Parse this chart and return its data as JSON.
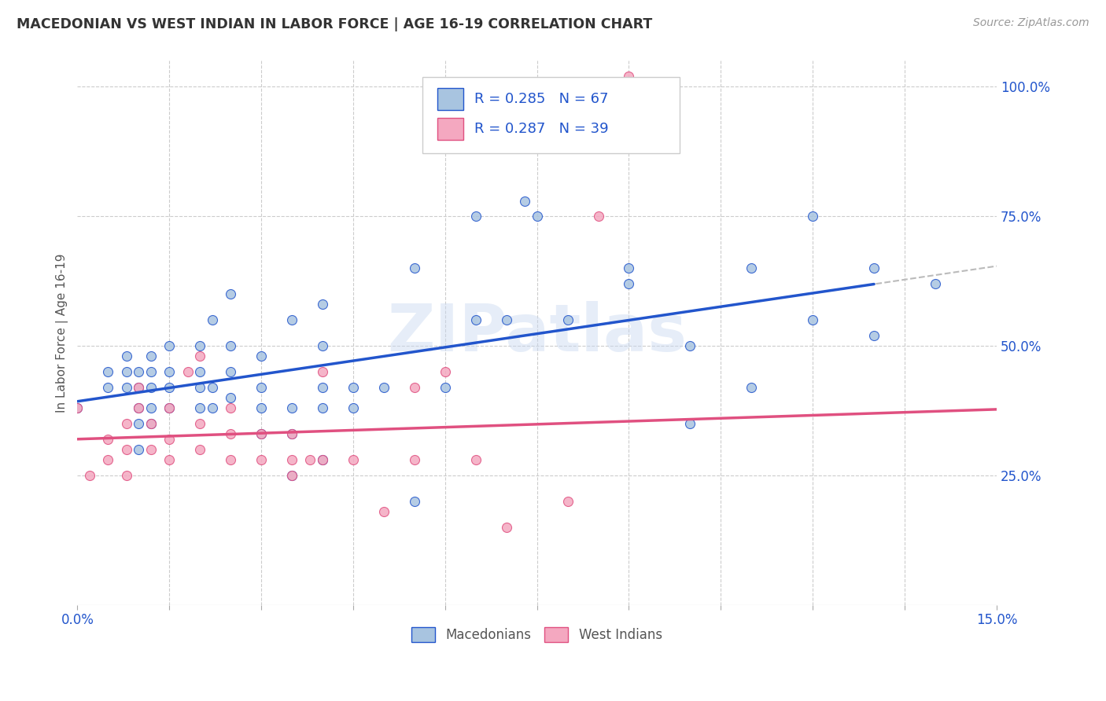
{
  "title": "MACEDONIAN VS WEST INDIAN IN LABOR FORCE | AGE 16-19 CORRELATION CHART",
  "source": "Source: ZipAtlas.com",
  "ylabel": "In Labor Force | Age 16-19",
  "xlim": [
    0.0,
    0.15
  ],
  "ylim": [
    0.0,
    1.05
  ],
  "y_tick_labels_right": [
    "25.0%",
    "50.0%",
    "75.0%",
    "100.0%"
  ],
  "y_ticks_right": [
    0.25,
    0.5,
    0.75,
    1.0
  ],
  "mac_color": "#a8c4e0",
  "wi_color": "#f4a8c0",
  "mac_line_color": "#2255cc",
  "wi_line_color": "#e05080",
  "trend_dash_color": "#bbbbbb",
  "R_mac": 0.285,
  "N_mac": 67,
  "R_wi": 0.287,
  "N_wi": 39,
  "watermark": "ZIPatlas",
  "mac_x": [
    0.0,
    0.005,
    0.005,
    0.008,
    0.008,
    0.008,
    0.01,
    0.01,
    0.01,
    0.01,
    0.01,
    0.012,
    0.012,
    0.012,
    0.012,
    0.012,
    0.015,
    0.015,
    0.015,
    0.015,
    0.02,
    0.02,
    0.02,
    0.02,
    0.022,
    0.022,
    0.022,
    0.025,
    0.025,
    0.025,
    0.025,
    0.03,
    0.03,
    0.03,
    0.03,
    0.035,
    0.035,
    0.035,
    0.035,
    0.04,
    0.04,
    0.04,
    0.04,
    0.04,
    0.045,
    0.045,
    0.05,
    0.055,
    0.055,
    0.06,
    0.065,
    0.065,
    0.07,
    0.073,
    0.075,
    0.08,
    0.09,
    0.09,
    0.1,
    0.1,
    0.11,
    0.11,
    0.12,
    0.12,
    0.13,
    0.13,
    0.14
  ],
  "mac_y": [
    0.38,
    0.42,
    0.45,
    0.42,
    0.45,
    0.48,
    0.3,
    0.35,
    0.38,
    0.42,
    0.45,
    0.35,
    0.38,
    0.42,
    0.45,
    0.48,
    0.38,
    0.42,
    0.45,
    0.5,
    0.38,
    0.42,
    0.45,
    0.5,
    0.38,
    0.42,
    0.55,
    0.4,
    0.45,
    0.5,
    0.6,
    0.33,
    0.38,
    0.42,
    0.48,
    0.25,
    0.33,
    0.38,
    0.55,
    0.28,
    0.38,
    0.42,
    0.5,
    0.58,
    0.38,
    0.42,
    0.42,
    0.2,
    0.65,
    0.42,
    0.55,
    0.75,
    0.55,
    0.78,
    0.75,
    0.55,
    0.65,
    0.62,
    0.35,
    0.5,
    0.65,
    0.42,
    0.55,
    0.75,
    0.52,
    0.65,
    0.62
  ],
  "wi_x": [
    0.0,
    0.002,
    0.005,
    0.005,
    0.008,
    0.008,
    0.008,
    0.01,
    0.01,
    0.012,
    0.012,
    0.015,
    0.015,
    0.015,
    0.018,
    0.02,
    0.02,
    0.02,
    0.025,
    0.025,
    0.025,
    0.03,
    0.03,
    0.035,
    0.035,
    0.035,
    0.038,
    0.04,
    0.04,
    0.045,
    0.05,
    0.055,
    0.055,
    0.06,
    0.065,
    0.07,
    0.08,
    0.085,
    0.09
  ],
  "wi_y": [
    0.38,
    0.25,
    0.28,
    0.32,
    0.25,
    0.3,
    0.35,
    0.38,
    0.42,
    0.3,
    0.35,
    0.28,
    0.32,
    0.38,
    0.45,
    0.3,
    0.35,
    0.48,
    0.28,
    0.33,
    0.38,
    0.28,
    0.33,
    0.25,
    0.28,
    0.33,
    0.28,
    0.28,
    0.45,
    0.28,
    0.18,
    0.42,
    0.28,
    0.45,
    0.28,
    0.15,
    0.2,
    0.75,
    1.02
  ],
  "background_color": "#ffffff",
  "grid_color": "#cccccc"
}
